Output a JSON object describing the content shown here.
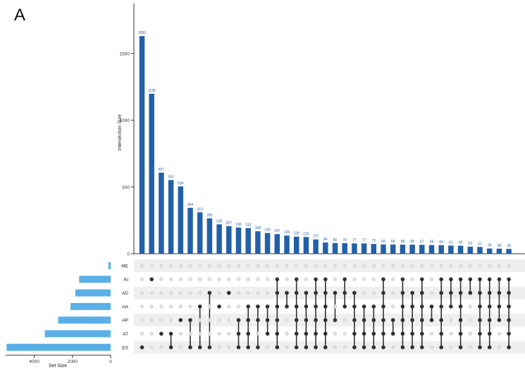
{
  "panel_label": "A",
  "colors": {
    "bar": "#2360a8",
    "set_bar": "#5ab0e6",
    "dot": "#303030",
    "dot_off": "#dcdcdc",
    "stripe": "#efefef"
  },
  "chart_data": {
    "type": "upset",
    "ylabel": "Intersection Size",
    "xlabel_sets": "Set Size",
    "y_ticks": [
      0,
      500,
      1000,
      1500
    ],
    "ylim": [
      0,
      1900
    ],
    "set_size_ticks": [
      4000,
      2000,
      0
    ],
    "set_size_lim": [
      5500,
      0
    ],
    "sets": [
      "ME",
      "RI",
      "AD",
      "AA",
      "AP",
      "AT",
      "ES"
    ],
    "set_sizes": [
      120,
      1650,
      1850,
      2100,
      2750,
      3450,
      5450
    ],
    "intersections": [
      {
        "value": 1630,
        "sets": [
          "ES"
        ]
      },
      {
        "value": 1198,
        "sets": [
          "RI"
        ]
      },
      {
        "value": 607,
        "sets": [
          "AT"
        ]
      },
      {
        "value": 552,
        "sets": [
          "AT",
          "ES"
        ]
      },
      {
        "value": 504,
        "sets": [
          "AP"
        ]
      },
      {
        "value": 344,
        "sets": [
          "AP",
          "ES"
        ]
      },
      {
        "value": 310,
        "sets": [
          "AA",
          "ES"
        ]
      },
      {
        "value": 265,
        "sets": [
          "AD",
          "ES"
        ]
      },
      {
        "value": 220,
        "sets": [
          "AA"
        ]
      },
      {
        "value": 207,
        "sets": [
          "AD"
        ]
      },
      {
        "value": 196,
        "sets": [
          "AP",
          "AT",
          "ES"
        ]
      },
      {
        "value": 192,
        "sets": [
          "AA",
          "AP",
          "AT",
          "ES"
        ]
      },
      {
        "value": 168,
        "sets": [
          "AA",
          "AP",
          "ES"
        ]
      },
      {
        "value": 155,
        "sets": [
          "AA",
          "AP",
          "AT"
        ]
      },
      {
        "value": 147,
        "sets": [
          "RI",
          "AD",
          "AA",
          "AP",
          "AT",
          "ES"
        ]
      },
      {
        "value": 136,
        "sets": [
          "AD",
          "AA"
        ]
      },
      {
        "value": 128,
        "sets": [
          "RI",
          "AD",
          "AA",
          "AP",
          "AT",
          "ES"
        ]
      },
      {
        "value": 125,
        "sets": [
          "AD",
          "AA",
          "AP",
          "AT",
          "ES"
        ]
      },
      {
        "value": 107,
        "sets": [
          "RI",
          "AD",
          "AA",
          "AP",
          "AT",
          "ES"
        ]
      },
      {
        "value": 84,
        "sets": [
          "RI",
          "AD",
          "AA",
          "AP",
          "AT",
          "ES"
        ]
      },
      {
        "value": 80,
        "sets": [
          "AD",
          "AP"
        ]
      },
      {
        "value": 79,
        "sets": [
          "RI",
          "AD",
          "AA"
        ]
      },
      {
        "value": 77,
        "sets": [
          "AD",
          "AA",
          "AP",
          "AT",
          "ES"
        ]
      },
      {
        "value": 77,
        "sets": [
          "AA",
          "AP",
          "AT",
          "ES"
        ]
      },
      {
        "value": 73,
        "sets": [
          "AA",
          "AP",
          "AT",
          "ES"
        ]
      },
      {
        "value": 69,
        "sets": [
          "RI",
          "AD",
          "AA",
          "AP",
          "AT",
          "ES"
        ]
      },
      {
        "value": 69,
        "sets": [
          "AP",
          "AT"
        ]
      },
      {
        "value": 68,
        "sets": [
          "RI",
          "AD",
          "AA",
          "AP",
          "AT",
          "ES"
        ]
      },
      {
        "value": 68,
        "sets": [
          "AD",
          "AA",
          "AP",
          "AT",
          "ES"
        ]
      },
      {
        "value": 67,
        "sets": [
          "RI",
          "AD",
          "AA",
          "AP",
          "AT",
          "ES"
        ]
      },
      {
        "value": 65,
        "sets": [
          "AA",
          "AP"
        ]
      },
      {
        "value": 64,
        "sets": [
          "RI",
          "AD",
          "AA",
          "AP",
          "AT",
          "ES"
        ]
      },
      {
        "value": 61,
        "sets": [
          "RI",
          "AD",
          "AA"
        ]
      },
      {
        "value": 60,
        "sets": [
          "RI",
          "AD",
          "AA",
          "AP",
          "AT",
          "ES"
        ]
      },
      {
        "value": 53,
        "sets": [
          "RI",
          "AD"
        ]
      },
      {
        "value": 51,
        "sets": [
          "RI",
          "AD",
          "AA",
          "AP",
          "AT",
          "ES"
        ]
      },
      {
        "value": 39,
        "sets": [
          "RI",
          "AD",
          "AA",
          "AP",
          "AT",
          "ES"
        ]
      },
      {
        "value": 38,
        "sets": [
          "RI",
          "AD",
          "AA",
          "AP"
        ]
      },
      {
        "value": 36,
        "sets": [
          "RI",
          "AD",
          "AA",
          "AP",
          "AT",
          "ES"
        ]
      }
    ]
  }
}
